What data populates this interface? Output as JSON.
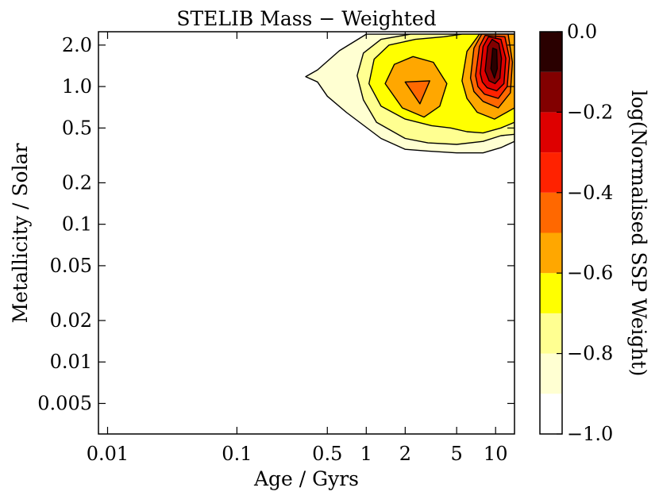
{
  "chart_data": {
    "type": "contour",
    "title": "STELIB Mass − Weighted",
    "xlabel": "Age / Gyrs",
    "ylabel": "Metallicity / Solar",
    "xscale": "log",
    "yscale": "log",
    "xlim": [
      0.0085,
      14
    ],
    "ylim": [
      0.003,
      2.5
    ],
    "xticks": [
      {
        "value": 0.01,
        "label": "0.01"
      },
      {
        "value": 0.1,
        "label": "0.1"
      },
      {
        "value": 0.5,
        "label": "0.5"
      },
      {
        "value": 1,
        "label": "1"
      },
      {
        "value": 2,
        "label": "2"
      },
      {
        "value": 5,
        "label": "5"
      },
      {
        "value": 10,
        "label": "10"
      }
    ],
    "yticks": [
      {
        "value": 2.0,
        "label": "2.0"
      },
      {
        "value": 1.0,
        "label": "1.0"
      },
      {
        "value": 0.5,
        "label": "0.5"
      },
      {
        "value": 0.2,
        "label": "0.2"
      },
      {
        "value": 0.1,
        "label": "0.1"
      },
      {
        "value": 0.05,
        "label": "0.05"
      },
      {
        "value": 0.02,
        "label": "0.02"
      },
      {
        "value": 0.01,
        "label": "0.01"
      },
      {
        "value": 0.005,
        "label": "0.005"
      }
    ],
    "colorbar": {
      "label": "log(Normalised SSP Weight)",
      "range": [
        -1.0,
        0.0
      ],
      "ticks": [
        {
          "value": 0.0,
          "label": "0.0"
        },
        {
          "value": -0.2,
          "label": "−0.2"
        },
        {
          "value": -0.4,
          "label": "−0.4"
        },
        {
          "value": -0.6,
          "label": "−0.6"
        },
        {
          "value": -0.8,
          "label": "−0.8"
        },
        {
          "value": -1.0,
          "label": "−1.0"
        }
      ],
      "bands": [
        {
          "from": -1.0,
          "to": -0.9,
          "color": "#ffffff"
        },
        {
          "from": -0.9,
          "to": -0.8,
          "color": "#ffffd2"
        },
        {
          "from": -0.8,
          "to": -0.7,
          "color": "#ffff91"
        },
        {
          "from": -0.7,
          "to": -0.6,
          "color": "#ffff00"
        },
        {
          "from": -0.6,
          "to": -0.5,
          "color": "#ffa700"
        },
        {
          "from": -0.5,
          "to": -0.4,
          "color": "#ff6800"
        },
        {
          "from": -0.4,
          "to": -0.3,
          "color": "#ff2200"
        },
        {
          "from": -0.3,
          "to": -0.2,
          "color": "#de0000"
        },
        {
          "from": -0.2,
          "to": -0.1,
          "color": "#820000"
        },
        {
          "from": -0.1,
          "to": 0.0,
          "color": "#2a0000"
        }
      ]
    },
    "contours": [
      {
        "level": -0.9,
        "color": "#ffffd2",
        "points": [
          [
            0.34,
            1.18
          ],
          [
            0.42,
            1.32
          ],
          [
            0.62,
            1.82
          ],
          [
            1.0,
            2.4
          ],
          [
            14,
            2.4
          ],
          [
            14,
            0.4
          ],
          [
            11,
            0.36
          ],
          [
            8,
            0.33
          ],
          [
            5,
            0.33
          ],
          [
            3,
            0.34
          ],
          [
            2,
            0.35
          ],
          [
            1.3,
            0.42
          ],
          [
            0.7,
            0.65
          ],
          [
            0.5,
            0.85
          ],
          [
            0.42,
            1.08
          ]
        ]
      },
      {
        "level": -0.8,
        "color": "#ffff91",
        "points": [
          [
            0.85,
            1.2
          ],
          [
            0.95,
            1.75
          ],
          [
            1.3,
            2.2
          ],
          [
            2.2,
            2.4
          ],
          [
            14,
            2.4
          ],
          [
            14,
            0.45
          ],
          [
            11,
            0.44
          ],
          [
            8,
            0.4
          ],
          [
            5,
            0.38
          ],
          [
            3,
            0.39
          ],
          [
            2,
            0.42
          ],
          [
            1.2,
            0.55
          ],
          [
            0.95,
            0.8
          ]
        ]
      },
      {
        "level": -0.7,
        "color": "#ffff00",
        "points": [
          [
            1.05,
            1.05
          ],
          [
            1.15,
            1.58
          ],
          [
            1.5,
            2.0
          ],
          [
            2.4,
            2.2
          ],
          [
            4,
            2.3
          ],
          [
            5.5,
            2.4
          ],
          [
            14,
            2.4
          ],
          [
            14,
            0.55
          ],
          [
            11,
            0.5
          ],
          [
            8,
            0.46
          ],
          [
            6,
            0.47
          ],
          [
            4.5,
            0.5
          ],
          [
            3.2,
            0.52
          ],
          [
            2,
            0.58
          ],
          [
            1.3,
            0.72
          ]
        ]
      },
      {
        "level": -0.6,
        "color": "#ffa700",
        "points": [
          [
            1.4,
            1.05
          ],
          [
            1.65,
            1.45
          ],
          [
            2.3,
            1.65
          ],
          [
            3.3,
            1.5
          ],
          [
            4.2,
            1.05
          ],
          [
            3.7,
            0.72
          ],
          [
            2.8,
            0.6
          ],
          [
            1.9,
            0.7
          ]
        ]
      },
      {
        "level": -0.5,
        "color": "#ff6800",
        "points": [
          [
            2.0,
            1.08
          ],
          [
            3.1,
            1.1
          ],
          [
            2.6,
            0.75
          ]
        ]
      },
      {
        "level": -0.6,
        "color": "#ffa700",
        "points": [
          [
            5.5,
            1.1
          ],
          [
            6.0,
            1.8
          ],
          [
            7.5,
            2.4
          ],
          [
            14,
            2.4
          ],
          [
            14,
            0.7
          ],
          [
            9.8,
            0.58
          ],
          [
            7.2,
            0.65
          ],
          [
            6.0,
            0.82
          ]
        ]
      },
      {
        "level": -0.5,
        "color": "#ff6800",
        "points": [
          [
            6.4,
            1.15
          ],
          [
            6.8,
            1.9
          ],
          [
            7.8,
            2.4
          ],
          [
            12.5,
            2.4
          ],
          [
            13.5,
            1.5
          ],
          [
            13,
            0.9
          ],
          [
            10.5,
            0.7
          ],
          [
            8.0,
            0.78
          ],
          [
            6.8,
            0.92
          ]
        ]
      },
      {
        "level": -0.4,
        "color": "#ff2200",
        "points": [
          [
            7.0,
            1.2
          ],
          [
            7.5,
            1.95
          ],
          [
            8.3,
            2.35
          ],
          [
            11.8,
            2.3
          ],
          [
            12.8,
            1.6
          ],
          [
            12.3,
            1.0
          ],
          [
            10.5,
            0.82
          ],
          [
            8.2,
            0.88
          ],
          [
            7.3,
            1.0
          ]
        ]
      },
      {
        "level": -0.3,
        "color": "#de0000",
        "points": [
          [
            7.6,
            1.25
          ],
          [
            8.0,
            1.95
          ],
          [
            8.8,
            2.3
          ],
          [
            11.0,
            2.2
          ],
          [
            12.0,
            1.6
          ],
          [
            11.6,
            1.05
          ],
          [
            10.2,
            0.93
          ],
          [
            8.6,
            0.98
          ],
          [
            7.9,
            1.08
          ]
        ]
      },
      {
        "level": -0.2,
        "color": "#820000",
        "points": [
          [
            8.3,
            1.3
          ],
          [
            8.7,
            1.95
          ],
          [
            9.4,
            2.2
          ],
          [
            10.6,
            2.05
          ],
          [
            11.1,
            1.6
          ],
          [
            10.8,
            1.15
          ],
          [
            9.9,
            1.05
          ],
          [
            8.9,
            1.1
          ]
        ]
      },
      {
        "level": -0.1,
        "color": "#2a0000",
        "points": [
          [
            9.2,
            1.35
          ],
          [
            9.5,
            1.9
          ],
          [
            10.2,
            1.85
          ],
          [
            10.3,
            1.35
          ],
          [
            9.8,
            1.15
          ]
        ]
      }
    ]
  }
}
